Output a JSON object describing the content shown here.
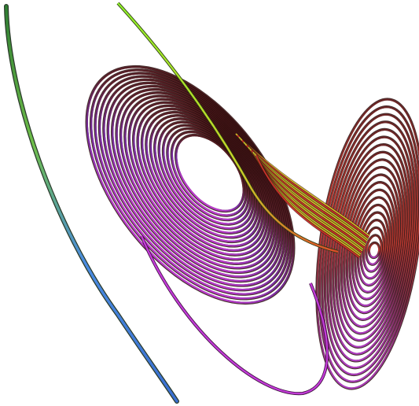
{
  "scene": {
    "subject": "lorenz-attractor",
    "background_color": "#ffffff",
    "palette": {
      "green": "#7be01f",
      "dark_red": "#5a1a1a",
      "maroon": "#6b2323",
      "red": "#d0342c",
      "magenta": "#c13bd6",
      "purple": "#7a2ca8",
      "blue": "#4a8be0",
      "outline": "#3a1010"
    }
  }
}
